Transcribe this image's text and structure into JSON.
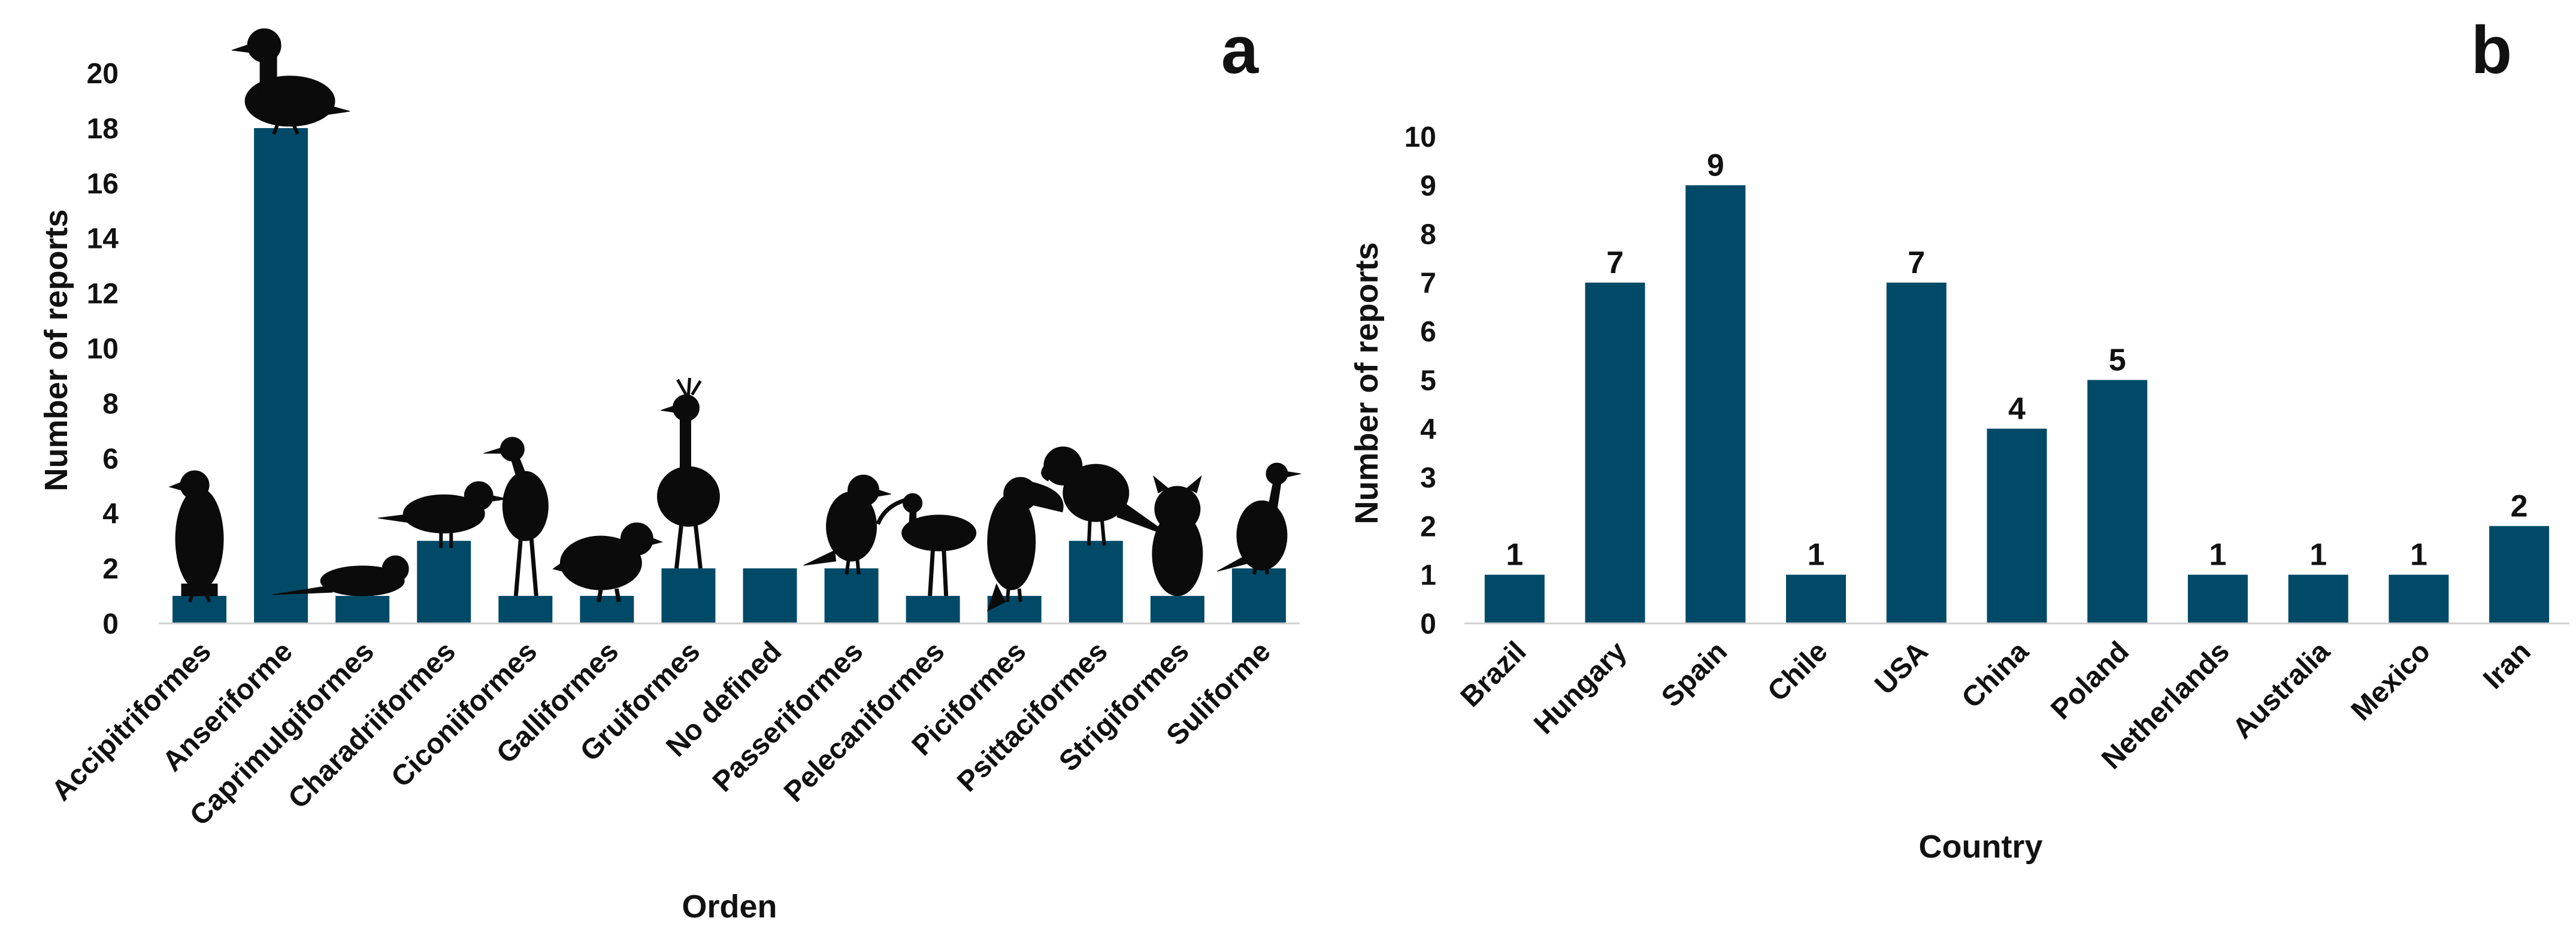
{
  "colors": {
    "bar": "#004a68",
    "axis": "#d0d0d0",
    "silhouette": "#0b0b0b"
  },
  "chart_data": [
    {
      "type": "bar",
      "panel": "a",
      "title": "",
      "xlabel": "Orden",
      "ylabel": "Number of reports",
      "ylim": [
        0,
        20
      ],
      "yticks": [
        "0",
        "2",
        "4",
        "6",
        "8",
        "10",
        "12",
        "14",
        "16",
        "18",
        "20"
      ],
      "grid": false,
      "categories": [
        "Accipitriformes",
        "Anseriforme",
        "Caprimulgiformes",
        "Charadriiformes",
        "Ciconiiformes",
        "Galliformes",
        "Gruiformes",
        "No defined",
        "Passeriformes",
        "Pelecaniformes",
        "Piciformes",
        "Psittaciformes",
        "Strigiformes",
        "Suliforme"
      ],
      "values": [
        1,
        18,
        1,
        3,
        1,
        1,
        2,
        2,
        2,
        1,
        1,
        3,
        1,
        2
      ],
      "icons": [
        "hawk-icon",
        "duck-icon",
        "nightjar-icon",
        "gull-icon",
        "stork-icon",
        "quail-icon",
        "crane-icon",
        "",
        "songbird-icon",
        "ibis-icon",
        "toucan-icon",
        "parrot-icon",
        "owl-icon",
        "cormorant-icon"
      ]
    },
    {
      "type": "bar",
      "panel": "b",
      "title": "",
      "xlabel": "Country",
      "ylabel": "Number of reports",
      "ylim": [
        0,
        10
      ],
      "yticks": [
        "0",
        "1",
        "2",
        "3",
        "4",
        "5",
        "6",
        "7",
        "8",
        "9",
        "10"
      ],
      "grid": false,
      "categories": [
        "Brazil",
        "Hungary",
        "Spain",
        "Chile",
        "USA",
        "China",
        "Poland",
        "Netherlands",
        "Australia",
        "Mexico",
        "Iran"
      ],
      "values": [
        1,
        7,
        9,
        1,
        7,
        4,
        5,
        1,
        1,
        1,
        2
      ],
      "data_labels": [
        "1",
        "7",
        "9",
        "1",
        "7",
        "4",
        "5",
        "1",
        "1",
        "1",
        "2"
      ]
    }
  ]
}
